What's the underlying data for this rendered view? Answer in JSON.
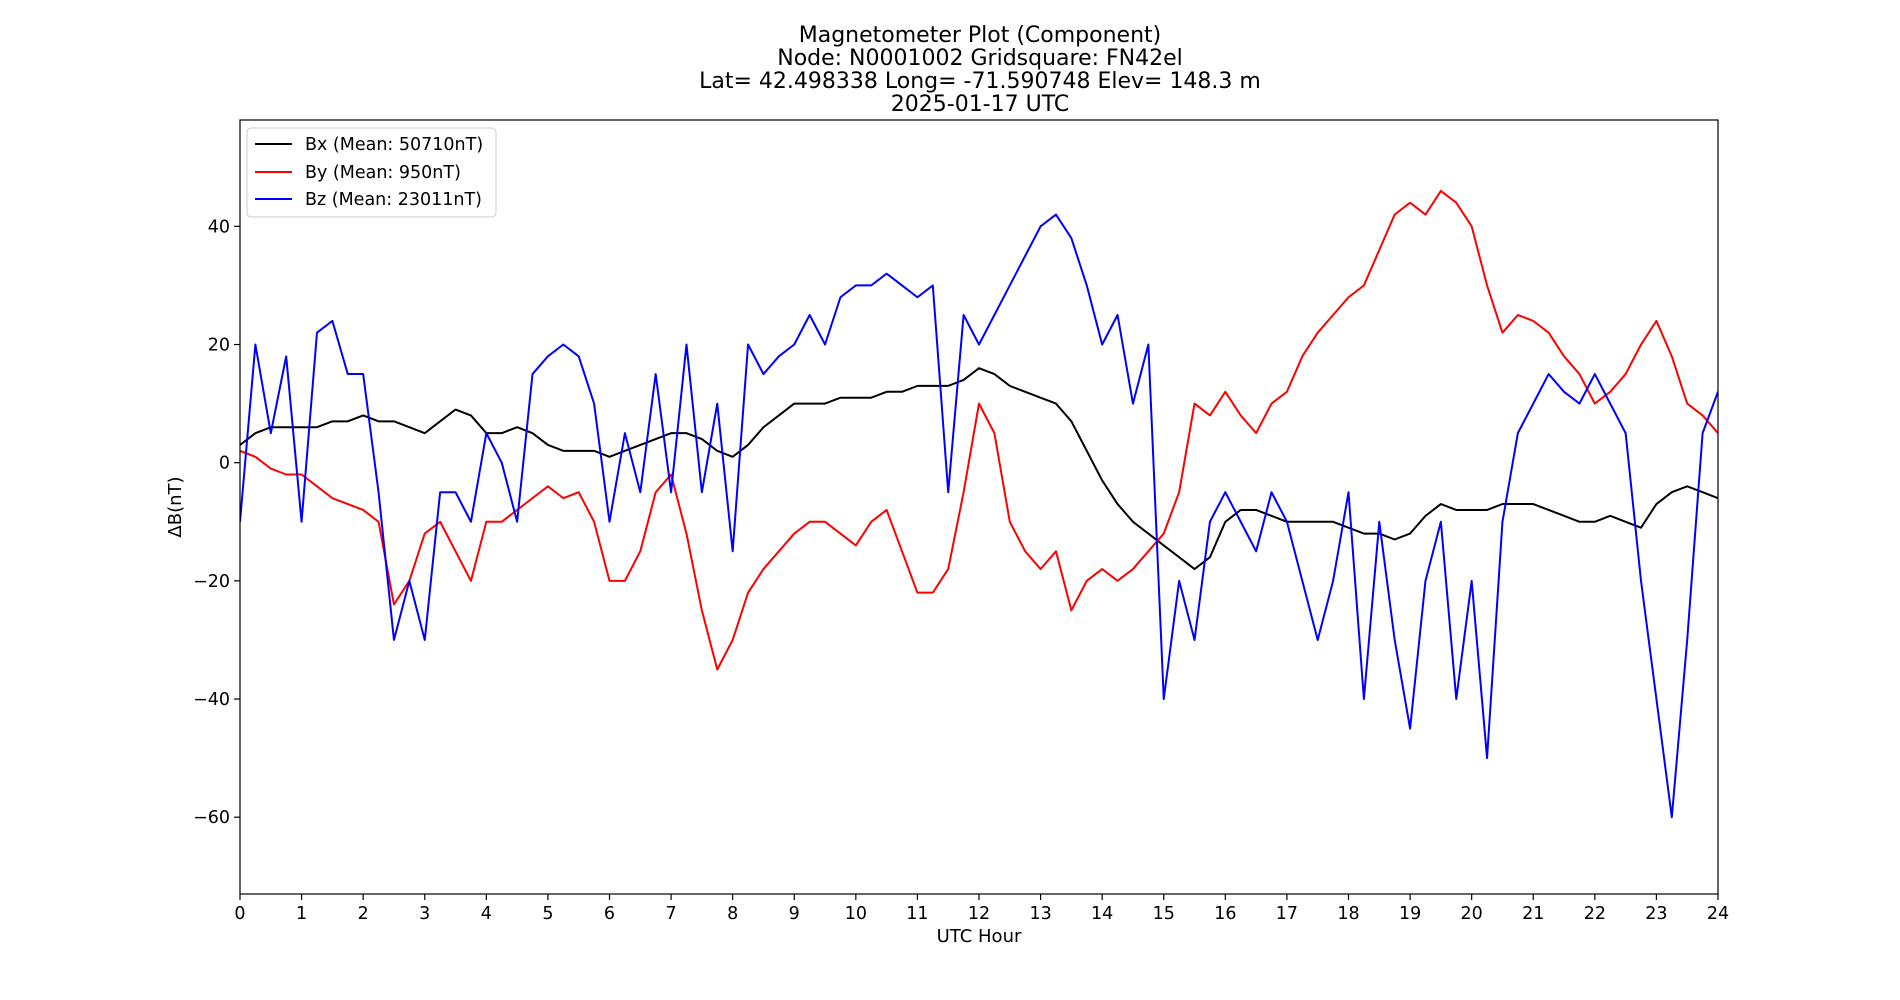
{
  "chart_data": {
    "type": "line",
    "title_lines": [
      "Magnetometer Plot (Component)",
      "Node:  N0001002     Gridsquare:  FN42el",
      "Lat= 42.498338    Long= -71.590748    Elev= 148.3 m",
      "2025-01-17  UTC"
    ],
    "xlabel": "UTC Hour",
    "ylabel": "ΔB(nT)",
    "xlim": [
      0,
      24
    ],
    "ylim": [
      -73,
      58
    ],
    "xticks": [
      0,
      1,
      2,
      3,
      4,
      5,
      6,
      7,
      8,
      9,
      10,
      11,
      12,
      13,
      14,
      15,
      16,
      17,
      18,
      19,
      20,
      21,
      22,
      23,
      24
    ],
    "xtick_labels": [
      "0",
      "1",
      "2",
      "3",
      "4",
      "5",
      "6",
      "7",
      "8",
      "9",
      "10",
      "11",
      "12",
      "13",
      "14",
      "15",
      "16",
      "17",
      "18",
      "19",
      "20",
      "21",
      "22",
      "23",
      "24"
    ],
    "yticks": [
      -60,
      -40,
      -20,
      0,
      20,
      40
    ],
    "ytick_labels": [
      "−60",
      "−40",
      "−20",
      "0",
      "20",
      "40"
    ],
    "grid": false,
    "legend_position": "upper-left",
    "series": [
      {
        "name": "Bx",
        "label": "Bx (Mean: 50710nT)",
        "color": "#000000",
        "x": [
          0,
          0.25,
          0.5,
          0.75,
          1,
          1.25,
          1.5,
          1.75,
          2,
          2.25,
          2.5,
          2.75,
          3,
          3.25,
          3.5,
          3.75,
          4,
          4.25,
          4.5,
          4.75,
          5,
          5.25,
          5.5,
          5.75,
          6,
          6.25,
          6.5,
          6.75,
          7,
          7.25,
          7.5,
          7.75,
          8,
          8.25,
          8.5,
          8.75,
          9,
          9.25,
          9.5,
          9.75,
          10,
          10.25,
          10.5,
          10.75,
          11,
          11.25,
          11.5,
          11.75,
          12,
          12.25,
          12.5,
          12.75,
          13,
          13.25,
          13.5,
          13.75,
          14,
          14.25,
          14.5,
          14.75,
          15,
          15.25,
          15.5,
          15.75,
          16,
          16.25,
          16.5,
          16.75,
          17,
          17.25,
          17.5,
          17.75,
          18,
          18.25,
          18.5,
          18.75,
          19,
          19.25,
          19.5,
          19.75,
          20,
          20.25,
          20.5,
          20.75,
          21,
          21.25,
          21.5,
          21.75,
          22,
          22.25,
          22.5,
          22.75,
          23,
          23.25,
          23.5,
          23.75,
          24
        ],
        "y": [
          3,
          5,
          6,
          6,
          6,
          6,
          7,
          7,
          8,
          7,
          7,
          6,
          5,
          7,
          9,
          8,
          5,
          5,
          6,
          5,
          3,
          2,
          2,
          2,
          1,
          2,
          3,
          4,
          5,
          5,
          4,
          2,
          1,
          3,
          6,
          8,
          10,
          10,
          10,
          11,
          11,
          11,
          12,
          12,
          13,
          13,
          13,
          14,
          16,
          15,
          13,
          12,
          11,
          10,
          7,
          2,
          -3,
          -7,
          -10,
          -12,
          -14,
          -16,
          -18,
          -16,
          -10,
          -8,
          -8,
          -9,
          -10,
          -10,
          -10,
          -10,
          -11,
          -12,
          -12,
          -13,
          -12,
          -9,
          -7,
          -8,
          -8,
          -8,
          -7,
          -7,
          -7,
          -8,
          -9,
          -10,
          -10,
          -9,
          -10,
          -11,
          -7,
          -5,
          -4,
          -5,
          -6
        ]
      },
      {
        "name": "By",
        "label": "By (Mean: 950nT)",
        "color": "#ff0000",
        "x": [
          0,
          0.25,
          0.5,
          0.75,
          1,
          1.25,
          1.5,
          1.75,
          2,
          2.25,
          2.5,
          2.75,
          3,
          3.25,
          3.5,
          3.75,
          4,
          4.25,
          4.5,
          4.75,
          5,
          5.25,
          5.5,
          5.75,
          6,
          6.25,
          6.5,
          6.75,
          7,
          7.25,
          7.5,
          7.75,
          8,
          8.25,
          8.5,
          8.75,
          9,
          9.25,
          9.5,
          9.75,
          10,
          10.25,
          10.5,
          10.75,
          11,
          11.25,
          11.5,
          11.75,
          12,
          12.25,
          12.5,
          12.75,
          13,
          13.25,
          13.5,
          13.75,
          14,
          14.25,
          14.5,
          14.75,
          15,
          15.25,
          15.5,
          15.75,
          16,
          16.25,
          16.5,
          16.75,
          17,
          17.25,
          17.5,
          17.75,
          18,
          18.25,
          18.5,
          18.75,
          19,
          19.25,
          19.5,
          19.75,
          20,
          20.25,
          20.5,
          20.75,
          21,
          21.25,
          21.5,
          21.75,
          22,
          22.25,
          22.5,
          22.75,
          23,
          23.25,
          23.5,
          23.75,
          24
        ],
        "y": [
          2,
          1,
          -1,
          -2,
          -2,
          -4,
          -6,
          -7,
          -8,
          -10,
          -24,
          -20,
          -12,
          -10,
          -15,
          -20,
          -10,
          -10,
          -8,
          -6,
          -4,
          -6,
          -5,
          -10,
          -20,
          -20,
          -15,
          -5,
          -2,
          -12,
          -25,
          -35,
          -30,
          -22,
          -18,
          -15,
          -12,
          -10,
          -10,
          -12,
          -14,
          -10,
          -8,
          -15,
          -22,
          -22,
          -18,
          -5,
          10,
          5,
          -10,
          -15,
          -18,
          -15,
          -25,
          -20,
          -18,
          -20,
          -18,
          -15,
          -12,
          -5,
          10,
          8,
          12,
          8,
          5,
          10,
          12,
          18,
          22,
          25,
          28,
          30,
          36,
          42,
          44,
          42,
          46,
          44,
          40,
          30,
          22,
          25,
          24,
          22,
          18,
          15,
          10,
          12,
          15,
          20,
          24,
          18,
          10,
          8,
          5
        ]
      },
      {
        "name": "Bz",
        "label": "Bz (Mean: 23011nT)",
        "color": "#0000ff",
        "x": [
          0,
          0.25,
          0.5,
          0.75,
          1,
          1.25,
          1.5,
          1.75,
          2,
          2.25,
          2.5,
          2.75,
          3,
          3.25,
          3.5,
          3.75,
          4,
          4.25,
          4.5,
          4.75,
          5,
          5.25,
          5.5,
          5.75,
          6,
          6.25,
          6.5,
          6.75,
          7,
          7.25,
          7.5,
          7.75,
          8,
          8.25,
          8.5,
          8.75,
          9,
          9.25,
          9.5,
          9.75,
          10,
          10.25,
          10.5,
          10.75,
          11,
          11.25,
          11.5,
          11.75,
          12,
          12.25,
          12.5,
          12.75,
          13,
          13.25,
          13.5,
          13.75,
          14,
          14.25,
          14.5,
          14.75,
          15,
          15.25,
          15.5,
          15.75,
          16,
          16.25,
          16.5,
          16.75,
          17,
          17.25,
          17.5,
          17.75,
          18,
          18.25,
          18.5,
          18.75,
          19,
          19.25,
          19.5,
          19.75,
          20,
          20.25,
          20.5,
          20.75,
          21,
          21.25,
          21.5,
          21.75,
          22,
          22.25,
          22.5,
          22.75,
          23,
          23.25,
          23.5,
          23.75,
          24
        ],
        "y": [
          -10,
          20,
          5,
          18,
          -10,
          22,
          24,
          15,
          15,
          -5,
          -30,
          -20,
          -30,
          -5,
          -5,
          -10,
          5,
          0,
          -10,
          15,
          18,
          20,
          18,
          10,
          -10,
          5,
          -5,
          15,
          -5,
          20,
          -5,
          10,
          -15,
          20,
          15,
          18,
          20,
          25,
          20,
          28,
          30,
          30,
          32,
          30,
          28,
          30,
          -5,
          25,
          20,
          25,
          30,
          35,
          40,
          42,
          38,
          30,
          20,
          25,
          10,
          20,
          -40,
          -20,
          -30,
          -10,
          -5,
          -10,
          -15,
          -5,
          -10,
          -20,
          -30,
          -20,
          -5,
          -40,
          -10,
          -30,
          -45,
          -20,
          -10,
          -40,
          -20,
          -50,
          -10,
          5,
          10,
          15,
          12,
          10,
          15,
          10,
          5,
          -20,
          -40,
          -60,
          -30,
          5,
          12
        ]
      }
    ]
  }
}
